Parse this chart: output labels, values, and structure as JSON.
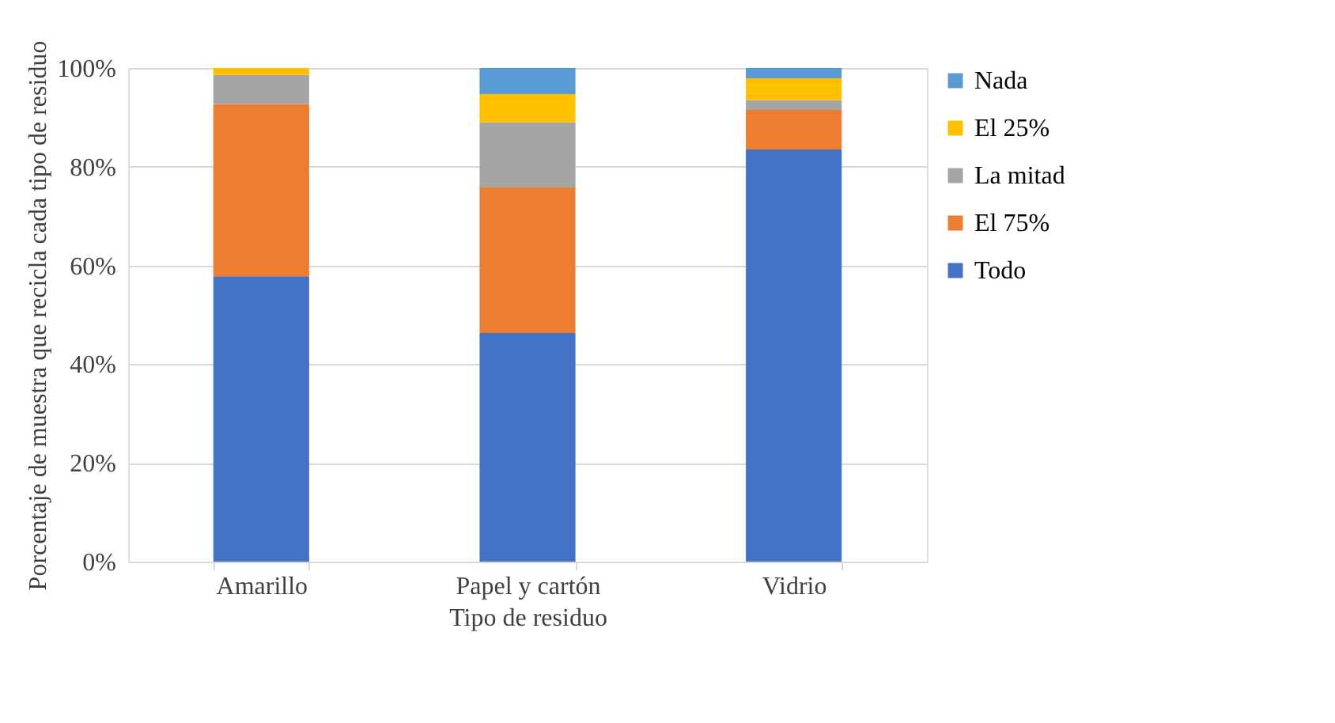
{
  "chart_data": {
    "type": "bar",
    "stacked": true,
    "xlabel": "Tipo de residuo",
    "ylabel": "Porcentaje de muestra que recicla cada tipo de residuo",
    "categories": [
      "Amarillo",
      "Papel y cartón",
      "Vidrio"
    ],
    "series": [
      {
        "name": "Todo",
        "color": "#4472c4",
        "values": [
          57.8,
          46.3,
          83.5
        ]
      },
      {
        "name": "El 75%",
        "color": "#ed7d31",
        "values": [
          34.9,
          29.5,
          8.0
        ]
      },
      {
        "name": "La mitad",
        "color": "#a5a5a5",
        "values": [
          5.9,
          13.2,
          2.0
        ]
      },
      {
        "name": "El 25%",
        "color": "#ffc000",
        "values": [
          1.4,
          5.7,
          4.4
        ]
      },
      {
        "name": "Nada",
        "color": "#5b9bd5",
        "values": [
          0,
          5.3,
          2.1
        ]
      }
    ],
    "ylim": [
      0,
      100
    ],
    "yticks": [
      {
        "value": 0,
        "label": "0%"
      },
      {
        "value": 20,
        "label": "20%"
      },
      {
        "value": 40,
        "label": "40%"
      },
      {
        "value": 60,
        "label": "60%"
      },
      {
        "value": 80,
        "label": "80%"
      },
      {
        "value": 100,
        "label": "100%"
      }
    ],
    "grid": "y",
    "legend": "right"
  }
}
